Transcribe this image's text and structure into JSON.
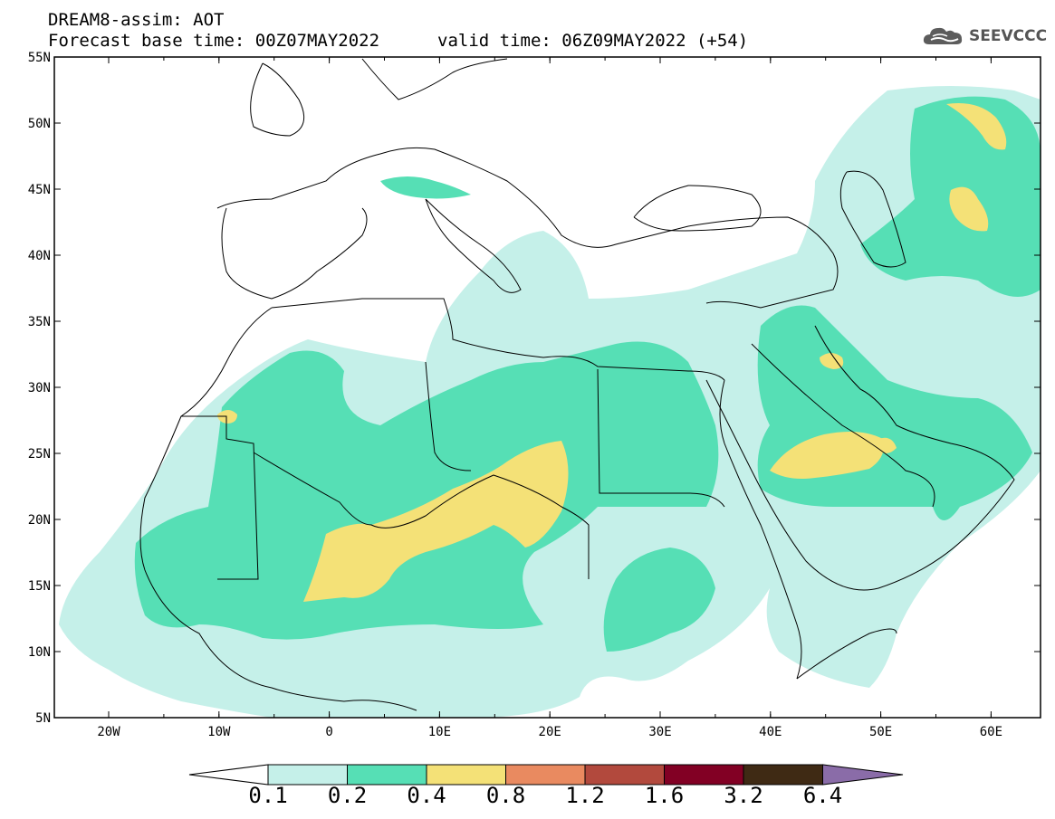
{
  "header": {
    "line1": "DREAM8-assim: AOT",
    "line2": "Forecast base time: 00Z07MAY2022",
    "line3": "valid time: 06Z09MAY2022 (+54)"
  },
  "logo": {
    "text": "SEEVCCC",
    "icon": "cloud-icon"
  },
  "map": {
    "variable": "AOT",
    "lon_ticks": [
      "20W",
      "10W",
      "0",
      "10E",
      "20E",
      "30E",
      "40E",
      "50E",
      "60E"
    ],
    "lat_ticks": [
      "55N",
      "50N",
      "45N",
      "40N",
      "35N",
      "30N",
      "25N",
      "20N",
      "15N",
      "10N",
      "5N"
    ]
  },
  "colorbar": {
    "labels": [
      "0.1",
      "0.2",
      "0.4",
      "0.8",
      "1.2",
      "1.6",
      "3.2",
      "6.4"
    ],
    "colors": [
      "#ffffff",
      "#c5f0e9",
      "#56dfb5",
      "#f4e177",
      "#e98a60",
      "#b2493d",
      "#820024",
      "#3f2a14",
      "#8a6ca8"
    ]
  }
}
